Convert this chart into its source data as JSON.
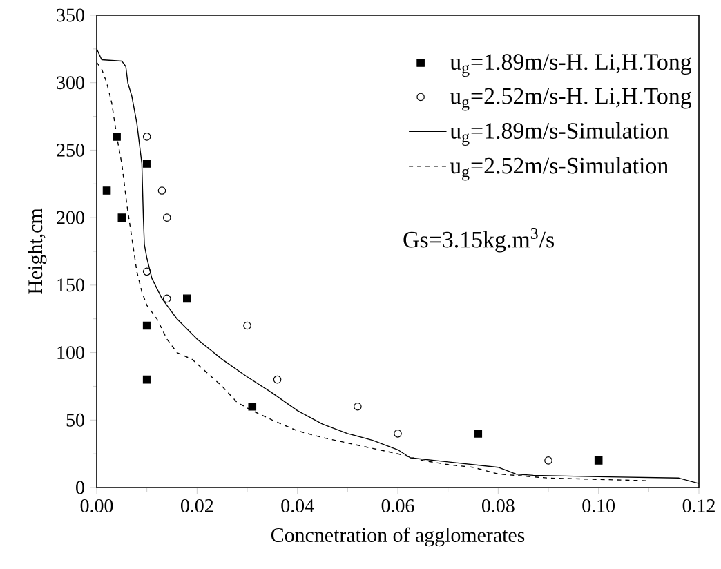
{
  "chart_data": {
    "type": "scatter",
    "xlabel": "Concnetration of agglomerates",
    "ylabel": "Height,cm",
    "xlim": [
      0,
      0.12
    ],
    "ylim": [
      0,
      350
    ],
    "xticks": [
      {
        "value": 0,
        "label": "0.00"
      },
      {
        "value": 0.02,
        "label": "0.02"
      },
      {
        "value": 0.04,
        "label": "0.04"
      },
      {
        "value": 0.06,
        "label": "0.06"
      },
      {
        "value": 0.08,
        "label": "0.08"
      },
      {
        "value": 0.1,
        "label": "0.10"
      },
      {
        "value": 0.12,
        "label": "0.12"
      }
    ],
    "yticks": [
      0,
      50,
      100,
      150,
      200,
      250,
      300,
      350
    ],
    "legend": "top right",
    "grid": false,
    "annotations": [
      "Gs=3.15kg.m$^{3}$/s"
    ],
    "series": [
      {
        "name": "u$_{g}$=1.89m/s-H. Li,H.Tong",
        "marker": "square",
        "color": "#000000",
        "x": [
          0.002,
          0.004,
          0.005,
          0.01,
          0.01,
          0.01,
          0.018,
          0.031,
          0.076,
          0.1
        ],
        "values": [
          220,
          260,
          200,
          240,
          120,
          80,
          140,
          60,
          40,
          20
        ]
      },
      {
        "name": "u$_{g}$=2.52m/s-H. Li,H.Tong",
        "marker": "circle",
        "color": "#000000",
        "x": [
          0.01,
          0.013,
          0.014,
          0.01,
          0.014,
          0.03,
          0.036,
          0.052,
          0.06,
          0.09
        ],
        "values": [
          260,
          220,
          200,
          160,
          140,
          120,
          80,
          60,
          40,
          20
        ]
      },
      {
        "name": "u$_{g}$=1.89m/s-Simulation",
        "type": "line",
        "line_style": "solid",
        "marker": "none",
        "color": "#000000",
        "x": [
          0,
          0.001,
          0.005,
          0.0058,
          0.0062,
          0.007,
          0.008,
          0.009,
          0.0093,
          0.0095,
          0.01,
          0.011,
          0.013,
          0.016,
          0.02,
          0.025,
          0.03,
          0.035,
          0.04,
          0.045,
          0.05,
          0.055,
          0.06,
          0.0625,
          0.07,
          0.08,
          0.0835,
          0.087,
          0.1,
          0.116,
          0.12
        ],
        "values": [
          325,
          317,
          316,
          312,
          300,
          290,
          270,
          240,
          200,
          180,
          170,
          155,
          140,
          125,
          110,
          95,
          82,
          70,
          57,
          47,
          40,
          35,
          28,
          22,
          19,
          15,
          10,
          9,
          8,
          7,
          3
        ]
      },
      {
        "name": "u$_{g}$=2.52m/s-Simulation",
        "type": "line",
        "line_style": "dashed",
        "marker": "none",
        "color": "#000000",
        "x": [
          0,
          0.001,
          0.002,
          0.003,
          0.004,
          0.005,
          0.006,
          0.007,
          0.008,
          0.009,
          0.01,
          0.012,
          0.014,
          0.016,
          0.019,
          0.022,
          0.025,
          0.028,
          0.031,
          0.035,
          0.04,
          0.045,
          0.05,
          0.055,
          0.06,
          0.065,
          0.07,
          0.075,
          0.08,
          0.09,
          0.1,
          0.11
        ],
        "values": [
          315,
          310,
          300,
          285,
          260,
          240,
          210,
          185,
          160,
          145,
          135,
          125,
          110,
          100,
          95,
          85,
          75,
          63,
          57,
          50,
          42,
          37,
          33,
          29,
          25,
          20,
          17,
          15,
          10,
          7,
          6,
          5
        ]
      }
    ]
  }
}
